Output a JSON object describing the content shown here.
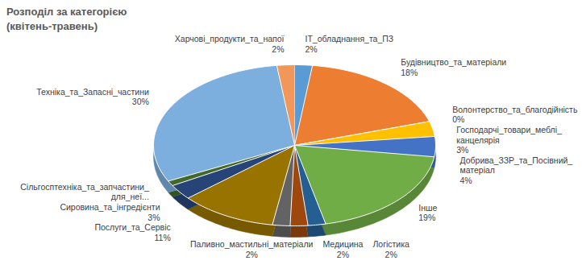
{
  "chart_data": {
    "type": "pie",
    "title": "Розподіл за категорією (квітень-травень)",
    "categories": [
      "IT_обладнання_та_ПЗ",
      "Будівництво_та_матеріали",
      "Волонтерство_та_благодійність",
      "Господарчі_товари_меблі_канцелярія",
      "Добрива_ЗЗР_та_Посівний_матеріал",
      "Інше",
      "Логістика",
      "Медицина",
      "Паливно_мастильні_матеріали",
      "Послуги_та_Сервіс",
      "Сировина_та_інгредієнти",
      "Сільгосптехніка_та_запчастини_для_неї...",
      "Техніка_та_Запасні_частини",
      "Харчові_продукти_та_напої"
    ],
    "values": [
      2,
      18,
      0,
      3,
      4,
      19,
      2,
      2,
      2,
      11,
      3,
      1,
      30,
      2
    ],
    "value_labels": [
      "2%",
      "18%",
      "0%",
      "3%",
      "4%",
      "19%",
      "2%",
      "2%",
      "2%",
      "11%",
      "3%",
      null,
      "30%",
      "2%"
    ],
    "colors": [
      "#5B9BD5",
      "#ED7D31",
      "#A5A5A5",
      "#FFC000",
      "#4472C4",
      "#70AD47",
      "#255E91",
      "#9E480E",
      "#636363",
      "#997300",
      "#264478",
      "#43682B",
      "#7CAFDD",
      "#F1975A"
    ],
    "data_labels": true
  }
}
